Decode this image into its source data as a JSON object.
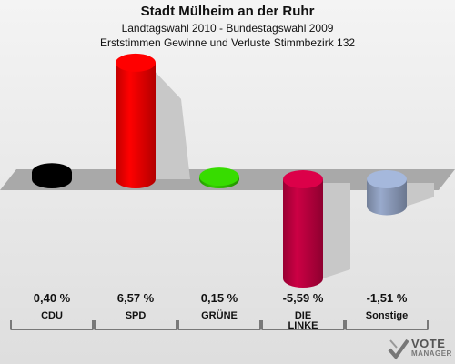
{
  "header": {
    "title": "Stadt Mülheim an der Ruhr",
    "subtitle1": "Landtagswahl 2010 - Bundestagswahl 2009",
    "subtitle2": "Erststimmen Gewinne und Verluste Stimmbezirk 132"
  },
  "chart_data": {
    "type": "bar",
    "categories": [
      "CDU",
      "SPD",
      "GRÜNE",
      "DIE LINKE",
      "Sonstige"
    ],
    "category_lines": [
      [
        "CDU"
      ],
      [
        "SPD"
      ],
      [
        "GRÜNE"
      ],
      [
        "DIE",
        "LINKE"
      ],
      [
        "Sonstige"
      ]
    ],
    "values": [
      0.4,
      6.57,
      0.15,
      -5.59,
      -1.51
    ],
    "value_labels": [
      "0,40 %",
      "6,57 %",
      "0,15 %",
      "-5,59 %",
      "-1,51 %"
    ],
    "colors": [
      "#000000",
      "#ff0000",
      "#33cc00",
      "#cc0044",
      "#99aacc"
    ],
    "baseline": 0
  },
  "logo": {
    "line1": "VOTE",
    "line2": "MANAGER"
  }
}
